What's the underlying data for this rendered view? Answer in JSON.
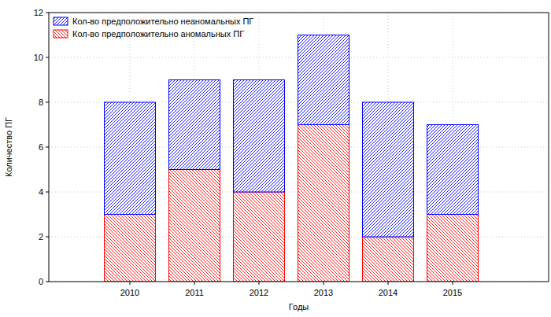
{
  "chart_data": {
    "type": "bar",
    "stacked": true,
    "x_label": "Годы",
    "y_label": "Количество ПГ",
    "categories": [
      "2010",
      "2011",
      "2012",
      "2013",
      "2014",
      "2015"
    ],
    "series": [
      {
        "name": "Кол-во предположительно аномальных ПГ",
        "color": "#ff0000",
        "values": [
          3,
          5,
          4,
          7,
          2,
          3
        ]
      },
      {
        "name": "Кол-во предположительно неаномальных ПГ",
        "color": "#0000ff",
        "values": [
          5,
          4,
          5,
          4,
          6,
          4
        ]
      }
    ],
    "ylim": [
      0,
      12
    ],
    "yticks": [
      0,
      2,
      4,
      6,
      8,
      10,
      12
    ],
    "grid": true,
    "legend": "upper left"
  }
}
